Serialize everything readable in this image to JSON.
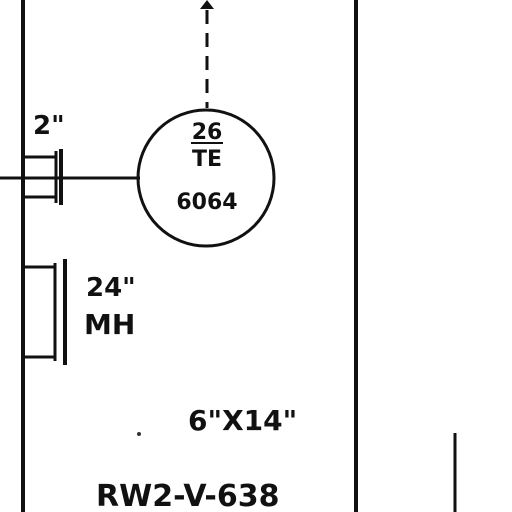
{
  "drawing": {
    "instrument_bubble": {
      "loop_number": "26",
      "function_code": "TE",
      "tag_number": "6064"
    },
    "branch_size": "2\"",
    "manhole": {
      "size": "24\"",
      "label": "MH"
    },
    "duct_size": "6\"X14\"",
    "line_id": "RW2-V-638"
  }
}
